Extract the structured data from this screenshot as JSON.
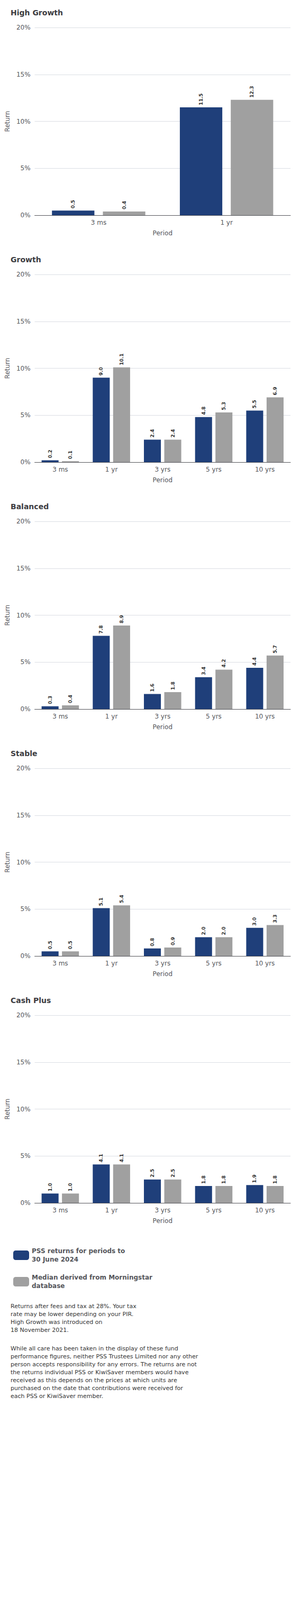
{
  "chart_data": [
    {
      "type": "bar",
      "title": "High Growth",
      "xlabel": "Period",
      "ylabel": "Return",
      "categories": [
        "3 ms",
        "1 yr"
      ],
      "series": [
        {
          "name": "PSS returns for periods to\n30 June 2024",
          "color": "#1F3F7A",
          "values": [
            0.5,
            11.5
          ],
          "value_labels": [
            "0.5",
            "11.5"
          ]
        },
        {
          "name": "Median derived from Morningstar\ndatabase",
          "color": "#A0A0A0",
          "values": [
            0.4,
            12.3
          ],
          "value_labels": [
            "0.4",
            "12.3"
          ]
        }
      ],
      "ylim": [
        0,
        20
      ],
      "yticks": [
        {
          "value": 0,
          "label": "0%"
        },
        {
          "value": 5,
          "label": "5%"
        },
        {
          "value": 10,
          "label": "10%"
        },
        {
          "value": 15,
          "label": "15%"
        },
        {
          "value": 20,
          "label": "20%"
        }
      ],
      "grid": true,
      "data_labels": true
    },
    {
      "type": "bar",
      "title": "Growth",
      "xlabel": "Period",
      "ylabel": "Return",
      "categories": [
        "3 ms",
        "1 yr",
        "3 yrs",
        "5 yrs",
        "10 yrs"
      ],
      "series": [
        {
          "name": "PSS returns for periods to\n30 June 2024",
          "color": "#1F3F7A",
          "values": [
            0.2,
            9.0,
            2.4,
            4.8,
            5.5
          ],
          "value_labels": [
            "0.2",
            "9.0",
            "2.4",
            "4.8",
            "5.5"
          ]
        },
        {
          "name": "Median derived from Morningstar\ndatabase",
          "color": "#A0A0A0",
          "values": [
            0.1,
            10.1,
            2.4,
            5.3,
            6.9
          ],
          "value_labels": [
            "0.1",
            "10.1",
            "2.4",
            "5.3",
            "6.9"
          ]
        }
      ],
      "ylim": [
        0,
        20
      ],
      "yticks": [
        {
          "value": 0,
          "label": "0%"
        },
        {
          "value": 5,
          "label": "5%"
        },
        {
          "value": 10,
          "label": "10%"
        },
        {
          "value": 15,
          "label": "15%"
        },
        {
          "value": 20,
          "label": "20%"
        }
      ],
      "grid": true,
      "data_labels": true
    },
    {
      "type": "bar",
      "title": "Balanced",
      "xlabel": "Period",
      "ylabel": "Return",
      "categories": [
        "3 ms",
        "1 yr",
        "3 yrs",
        "5 yrs",
        "10 yrs"
      ],
      "series": [
        {
          "name": "PSS returns for periods to\n30 June 2024",
          "color": "#1F3F7A",
          "values": [
            0.3,
            7.8,
            1.6,
            3.4,
            4.4
          ],
          "value_labels": [
            "0.3",
            "7.8",
            "1.6",
            "3.4",
            "4.4"
          ]
        },
        {
          "name": "Median derived from Morningstar\ndatabase",
          "color": "#A0A0A0",
          "values": [
            0.4,
            8.9,
            1.8,
            4.2,
            5.7
          ],
          "value_labels": [
            "0.4",
            "8.9",
            "1.8",
            "4.2",
            "5.7"
          ]
        }
      ],
      "ylim": [
        0,
        20
      ],
      "yticks": [
        {
          "value": 0,
          "label": "0%"
        },
        {
          "value": 5,
          "label": "5%"
        },
        {
          "value": 10,
          "label": "10%"
        },
        {
          "value": 15,
          "label": "15%"
        },
        {
          "value": 20,
          "label": "20%"
        }
      ],
      "grid": true,
      "data_labels": true
    },
    {
      "type": "bar",
      "title": "Stable",
      "xlabel": "Period",
      "ylabel": "Return",
      "categories": [
        "3 ms",
        "1 yr",
        "3 yrs",
        "5 yrs",
        "10 yrs"
      ],
      "series": [
        {
          "name": "PSS returns for periods to\n30 June 2024",
          "color": "#1F3F7A",
          "values": [
            0.5,
            5.1,
            0.8,
            2.0,
            3.0
          ],
          "value_labels": [
            "0.5",
            "5.1",
            "0.8",
            "2.0",
            "3.0"
          ]
        },
        {
          "name": "Median derived from Morningstar\ndatabase",
          "color": "#A0A0A0",
          "values": [
            0.5,
            5.4,
            0.9,
            2.0,
            3.3
          ],
          "value_labels": [
            "0.5",
            "5.4",
            "0.9",
            "2.0",
            "3.3"
          ]
        }
      ],
      "ylim": [
        0,
        20
      ],
      "yticks": [
        {
          "value": 0,
          "label": "0%"
        },
        {
          "value": 5,
          "label": "5%"
        },
        {
          "value": 10,
          "label": "10%"
        },
        {
          "value": 15,
          "label": "15%"
        },
        {
          "value": 20,
          "label": "20%"
        }
      ],
      "grid": true,
      "data_labels": true
    },
    {
      "type": "bar",
      "title": "Cash Plus",
      "xlabel": "Period",
      "ylabel": "Return",
      "categories": [
        "3 ms",
        "1 yr",
        "3 yrs",
        "5 yrs",
        "10 yrs"
      ],
      "series": [
        {
          "name": "PSS returns for periods to\n30 June 2024",
          "color": "#1F3F7A",
          "values": [
            1.0,
            4.1,
            2.5,
            1.8,
            1.9
          ],
          "value_labels": [
            "1.0",
            "4.1",
            "2.5",
            "1.8",
            "1.9"
          ]
        },
        {
          "name": "Median derived from Morningstar\ndatabase",
          "color": "#A0A0A0",
          "values": [
            1.0,
            4.1,
            2.5,
            1.8,
            1.8
          ],
          "value_labels": [
            "1.0",
            "4.1",
            "2.5",
            "1.8",
            "1.8"
          ]
        }
      ],
      "ylim": [
        0,
        20
      ],
      "yticks": [
        {
          "value": 0,
          "label": "0%"
        },
        {
          "value": 5,
          "label": "5%"
        },
        {
          "value": 10,
          "label": "10%"
        },
        {
          "value": 15,
          "label": "15%"
        },
        {
          "value": 20,
          "label": "20%"
        }
      ],
      "grid": true,
      "data_labels": true,
      "legend": "bottom",
      "annotations": [
        "Returns after fees and tax at 28%. Your tax\nrate may be lower depending on your PIR.\nHigh Growth was introduced on\n18 November 2021.",
        "While all care has been taken in the display of these fund\nperformance figures, neither PSS Trustees Limited nor any other\nperson accepts responsibility for any errors. The returns are not\nthe returns individual PSS or KiwiSaver members would have\nreceived as this depends on the prices at which units are\npurchased on the date that contributions were received for\neach PSS or KiwiSaver member."
      ]
    }
  ]
}
